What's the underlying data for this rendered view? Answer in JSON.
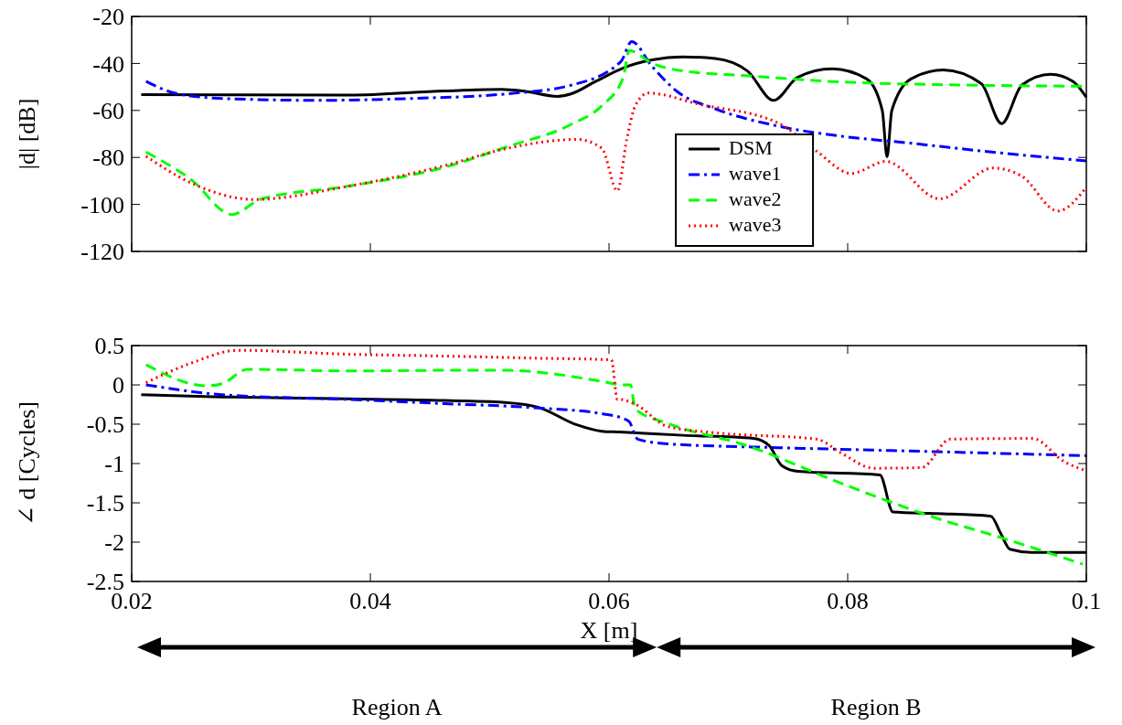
{
  "chart_data": [
    {
      "type": "line",
      "ylabel": "|d| [dB]",
      "xlim": [
        0.02,
        0.1
      ],
      "xticks": [
        0.02,
        0.04,
        0.06,
        0.08,
        0.1
      ],
      "ylim": [
        -120,
        -20
      ],
      "yticks": [
        -120,
        -100,
        -80,
        -60,
        -40,
        -20
      ],
      "tick_labels": "y",
      "grid": false,
      "legend": "bottom right",
      "series": [
        {
          "name": "DSM",
          "color": "#000000",
          "line_style": "solid",
          "x": [
            0.0208,
            0.0276,
            0.0382,
            0.0462,
            0.051,
            0.0528,
            0.0557,
            0.0568,
            0.0589,
            0.0612,
            0.0636,
            0.0662,
            0.0689,
            0.0716,
            0.0738,
            0.0758,
            0.0787,
            0.0816,
            0.0829,
            0.0833,
            0.0837,
            0.0853,
            0.088,
            0.0912,
            0.0929,
            0.0946,
            0.097,
            0.0989,
            0.1
          ],
          "values": [
            -53.3,
            -53.4,
            -53.5,
            -51.7,
            -51,
            -51.7,
            -54,
            -53,
            -47.6,
            -41.9,
            -38.5,
            -37.2,
            -37.9,
            -43.2,
            -55.7,
            -45.9,
            -42.3,
            -46.6,
            -60,
            -79.7,
            -60,
            -46.6,
            -42.8,
            -48.6,
            -65.6,
            -49.2,
            -44.6,
            -47.7,
            -54.4
          ]
        },
        {
          "name": "wave1",
          "color": "#0000ff",
          "line_style": "dashdot",
          "x": [
            0.0212,
            0.0236,
            0.0276,
            0.0356,
            0.0435,
            0.0515,
            0.0568,
            0.061,
            0.0619,
            0.0636,
            0.0657,
            0.0689,
            0.0742,
            0.0795,
            0.0848,
            0.0928,
            0.1
          ],
          "values": [
            -47.6,
            -52.6,
            -54.9,
            -55.7,
            -54.9,
            -52.9,
            -49.3,
            -39.2,
            -30.7,
            -41.2,
            -51.9,
            -59.3,
            -66.7,
            -71,
            -73.7,
            -78.1,
            -81.5
          ]
        },
        {
          "name": "wave2",
          "color": "#00ff00",
          "line_style": "dashed",
          "x": [
            0.0212,
            0.025,
            0.0284,
            0.0308,
            0.0382,
            0.0462,
            0.0515,
            0.0568,
            0.0594,
            0.0612,
            0.0617,
            0.0636,
            0.0662,
            0.0715,
            0.0795,
            0.0875,
            0.1
          ],
          "values": [
            -77.7,
            -89.5,
            -104.3,
            -97.8,
            -92.2,
            -84.2,
            -75.4,
            -66,
            -58,
            -45.9,
            -34.5,
            -39.9,
            -43.2,
            -45.2,
            -47.9,
            -49,
            -49.7
          ]
        },
        {
          "name": "wave3",
          "color": "#ff0000",
          "line_style": "dotted",
          "x": [
            0.0212,
            0.025,
            0.0303,
            0.0382,
            0.0462,
            0.0515,
            0.0573,
            0.0594,
            0.0607,
            0.0615,
            0.0622,
            0.0633,
            0.0675,
            0.0742,
            0.0774,
            0.0803,
            0.0832,
            0.0877,
            0.0922,
            0.0946,
            0.0976,
            0.1
          ],
          "values": [
            -79.5,
            -90.9,
            -97.9,
            -92.2,
            -83.5,
            -76.1,
            -72.3,
            -76.1,
            -94.2,
            -72,
            -58,
            -52.6,
            -57.3,
            -65.4,
            -77.4,
            -86.8,
            -81.7,
            -97.6,
            -84.5,
            -88,
            -102.8,
            -92.7
          ]
        }
      ]
    },
    {
      "type": "line",
      "xlabel": "X [m]",
      "ylabel": "∠ d [Cycles]",
      "xlim": [
        0.02,
        0.1
      ],
      "xticks": [
        0.02,
        0.04,
        0.06,
        0.08,
        0.1
      ],
      "ylim": [
        -2.5,
        0.5
      ],
      "yticks": [
        -2.5,
        -2,
        -1.5,
        -1,
        -0.5,
        0,
        0.5
      ],
      "grid": false,
      "annotations": [
        "Region A",
        "Region B"
      ],
      "series": [
        {
          "color": "#000000",
          "line_style": "solid",
          "x": [
            0.0208,
            0.0276,
            0.0382,
            0.0462,
            0.0515,
            0.0541,
            0.0573,
            0.0594,
            0.0609,
            0.0662,
            0.0721,
            0.0734,
            0.0745,
            0.0758,
            0.0827,
            0.0838,
            0.0875,
            0.092,
            0.0928,
            0.0936,
            0.0954,
            0.1
          ],
          "values": [
            -0.125,
            -0.153,
            -0.177,
            -0.198,
            -0.226,
            -0.286,
            -0.508,
            -0.589,
            -0.6,
            -0.641,
            -0.681,
            -0.77,
            -1.03,
            -1.1,
            -1.145,
            -1.617,
            -1.637,
            -1.67,
            -1.88,
            -2.09,
            -2.13,
            -2.13
          ]
        },
        {
          "color": "#0000ff",
          "line_style": "dashdot",
          "x": [
            0.0212,
            0.0276,
            0.0382,
            0.0462,
            0.0541,
            0.0594,
            0.0612,
            0.0617,
            0.0624,
            0.0649,
            0.0742,
            0.0848,
            0.0928,
            0.1
          ],
          "values": [
            0,
            -0.125,
            -0.185,
            -0.238,
            -0.294,
            -0.367,
            -0.427,
            -0.468,
            -0.69,
            -0.75,
            -0.798,
            -0.839,
            -0.871,
            -0.9
          ]
        },
        {
          "color": "#00ff00",
          "line_style": "dashed",
          "x": [
            0.0212,
            0.0263,
            0.0276,
            0.0297,
            0.0382,
            0.0462,
            0.0515,
            0.0555,
            0.0594,
            0.0612,
            0.0618,
            0.0622,
            0.0649,
            0.0715,
            0.0795,
            0.0875,
            0.0928,
            0.0997
          ],
          "values": [
            0.258,
            -0.012,
            0.016,
            0.198,
            0.177,
            0.185,
            0.185,
            0.137,
            0.044,
            0,
            0,
            -0.306,
            -0.488,
            -0.77,
            -1.254,
            -1.698,
            -1.94,
            -2.28
          ]
        },
        {
          "color": "#ff0000",
          "line_style": "dotted",
          "x": [
            0.0212,
            0.025,
            0.0289,
            0.0382,
            0.0462,
            0.0541,
            0.0602,
            0.0607,
            0.0609,
            0.0622,
            0.0649,
            0.0689,
            0.0774,
            0.0795,
            0.0822,
            0.0862,
            0.0886,
            0.0955,
            0.0981,
            0.1
          ],
          "values": [
            0.028,
            0.278,
            0.44,
            0.39,
            0.367,
            0.339,
            0.319,
            -0.185,
            -0.185,
            -0.246,
            -0.528,
            -0.609,
            -0.69,
            -0.871,
            -1.06,
            -1.052,
            -0.69,
            -0.681,
            -0.972,
            -1.093
          ]
        }
      ]
    }
  ]
}
